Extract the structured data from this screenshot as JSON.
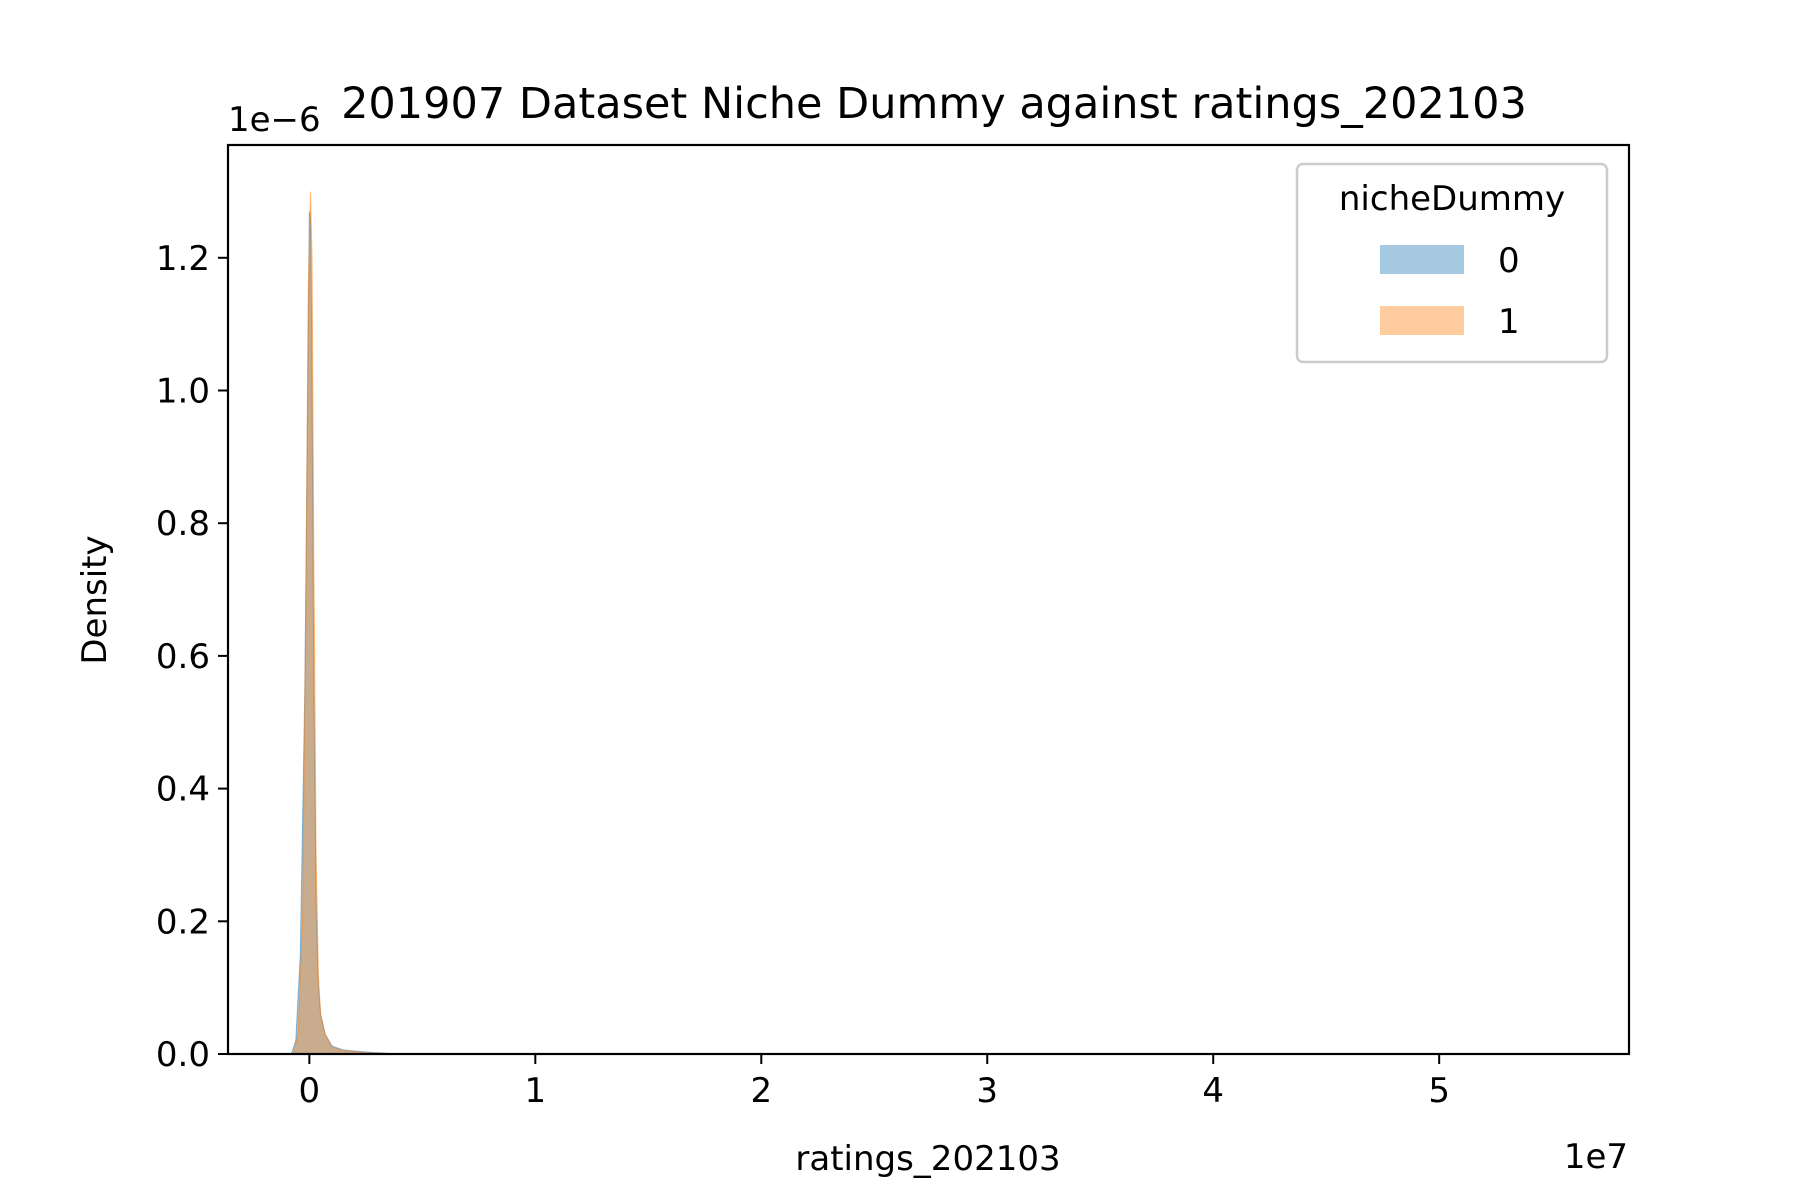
{
  "chart_data": {
    "type": "area",
    "title": "201907 Dataset Niche Dummy against ratings_202103",
    "xlabel": "ratings_202103",
    "ylabel": "Density",
    "x_offset_label": "1e7",
    "y_offset_label": "1e−6",
    "x_scale": 10000000,
    "y_scale": 1e-06,
    "xlim": [
      -0.36,
      5.84
    ],
    "ylim": [
      0,
      1.37
    ],
    "x_ticks": [
      0,
      1,
      2,
      3,
      4,
      5
    ],
    "x_tick_labels": [
      "0",
      "1",
      "2",
      "3",
      "4",
      "5"
    ],
    "y_ticks": [
      0.0,
      0.2,
      0.4,
      0.6,
      0.8,
      1.0,
      1.2
    ],
    "y_tick_labels": [
      "0.0",
      "0.2",
      "0.4",
      "0.6",
      "0.8",
      "1.0",
      "1.2"
    ],
    "grid": false,
    "legend": {
      "title": "nicheDummy",
      "position": "top-right",
      "entries": [
        "0",
        "1"
      ]
    },
    "series": [
      {
        "name": "0",
        "color": "#1f77b4",
        "opacity": 0.4,
        "x": [
          -0.08,
          -0.06,
          -0.04,
          -0.02,
          -0.01,
          0.0,
          0.005,
          0.01,
          0.02,
          0.03,
          0.04,
          0.05,
          0.07,
          0.1,
          0.15,
          0.25,
          0.35,
          0.5
        ],
        "y": [
          0.0,
          0.02,
          0.15,
          0.55,
          0.9,
          1.27,
          1.26,
          1.1,
          0.55,
          0.22,
          0.1,
          0.06,
          0.03,
          0.012,
          0.006,
          0.003,
          0.001,
          0.0
        ]
      },
      {
        "name": "1",
        "color": "#ff7f0e",
        "opacity": 0.4,
        "x": [
          -0.07,
          -0.05,
          -0.03,
          -0.015,
          -0.005,
          0.005,
          0.012,
          0.02,
          0.03,
          0.04,
          0.05,
          0.07,
          0.1,
          0.15,
          0.25,
          0.35,
          0.5
        ],
        "y": [
          0.0,
          0.03,
          0.2,
          0.7,
          1.15,
          1.3,
          1.2,
          0.75,
          0.3,
          0.12,
          0.06,
          0.03,
          0.01,
          0.005,
          0.002,
          0.0005,
          0.0
        ]
      }
    ]
  }
}
